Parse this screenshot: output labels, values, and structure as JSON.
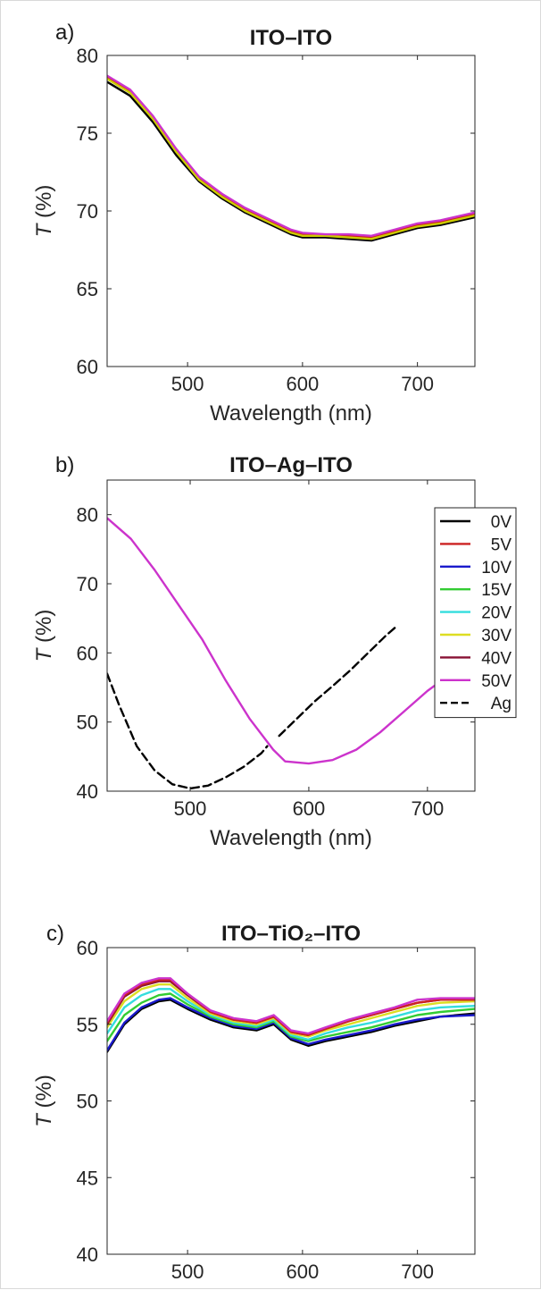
{
  "chart_data": [
    {
      "panel": "a)",
      "type": "line",
      "title": "ITO–ITO",
      "xlabel": "Wavelength (nm)",
      "ylabel_italic": "T",
      "ylabel_rest": " (%)",
      "xlim": [
        430,
        750
      ],
      "ylim": [
        60,
        80
      ],
      "xticks": [
        500,
        600,
        700
      ],
      "yticks": [
        60,
        65,
        70,
        75,
        80
      ],
      "series": [
        {
          "color": "#000000",
          "x": [
            430,
            450,
            470,
            490,
            510,
            530,
            550,
            570,
            590,
            600,
            620,
            640,
            660,
            680,
            700,
            720,
            750
          ],
          "y": [
            78.3,
            77.4,
            75.7,
            73.6,
            71.9,
            70.8,
            69.9,
            69.2,
            68.5,
            68.3,
            68.3,
            68.2,
            68.1,
            68.5,
            68.9,
            69.1,
            69.6
          ]
        },
        {
          "color": "#cc2222",
          "x": [
            430,
            450,
            470,
            490,
            510,
            530,
            550,
            570,
            590,
            600,
            620,
            640,
            660,
            680,
            700,
            720,
            750
          ],
          "y": [
            78.6,
            77.7,
            76.0,
            73.9,
            72.1,
            71.0,
            70.1,
            69.4,
            68.7,
            68.5,
            68.4,
            68.4,
            68.3,
            68.7,
            69.1,
            69.3,
            69.8
          ]
        },
        {
          "color": "#cccc00",
          "x": [
            430,
            450,
            470,
            490,
            510,
            530,
            550,
            570,
            590,
            600,
            620,
            640,
            660,
            680,
            700,
            720,
            750
          ],
          "y": [
            78.5,
            77.6,
            75.9,
            73.8,
            72.0,
            70.9,
            70.0,
            69.3,
            68.6,
            68.4,
            68.4,
            68.3,
            68.2,
            68.6,
            69.0,
            69.2,
            69.7
          ]
        },
        {
          "color": "#cc33cc",
          "x": [
            430,
            450,
            470,
            490,
            510,
            530,
            550,
            570,
            590,
            600,
            620,
            640,
            660,
            680,
            700,
            720,
            750
          ],
          "y": [
            78.7,
            77.8,
            76.1,
            74.0,
            72.2,
            71.1,
            70.2,
            69.5,
            68.8,
            68.6,
            68.5,
            68.5,
            68.4,
            68.8,
            69.2,
            69.4,
            69.9
          ]
        }
      ]
    },
    {
      "panel": "b)",
      "type": "line",
      "title": "ITO–Ag–ITO",
      "xlabel": "Wavelength (nm)",
      "ylabel_italic": "T",
      "ylabel_rest": " (%)",
      "xlim": [
        430,
        740
      ],
      "ylim": [
        40,
        85
      ],
      "xticks": [
        500,
        600,
        700
      ],
      "yticks": [
        40,
        50,
        60,
        70,
        80
      ],
      "legend_position": "right",
      "legend": [
        "0V",
        "5V",
        "10V",
        "15V",
        "20V",
        "30V",
        "40V",
        "50V",
        "Ag"
      ],
      "legend_colors": [
        "#000000",
        "#cc2222",
        "#1a1acc",
        "#33cc33",
        "#33dddd",
        "#dddd22",
        "#881133",
        "#cc33cc",
        "#000000"
      ],
      "legend_dashed": [
        false,
        false,
        false,
        false,
        false,
        false,
        false,
        false,
        true
      ],
      "series": [
        {
          "name": "50V",
          "color": "#cc33cc",
          "dashed": false,
          "x": [
            430,
            450,
            470,
            490,
            510,
            530,
            550,
            570,
            580,
            600,
            620,
            640,
            660,
            680,
            700,
            720,
            740
          ],
          "y": [
            79.5,
            76.5,
            72.0,
            67.0,
            62.0,
            56.0,
            50.5,
            46.0,
            44.3,
            44.0,
            44.5,
            46.0,
            48.5,
            51.5,
            54.5,
            57.0,
            59.5
          ]
        },
        {
          "name": "Ag",
          "color": "#000000",
          "dashed": true,
          "x": [
            430,
            440,
            455,
            470,
            485,
            500,
            515,
            530,
            545,
            560,
            565
          ],
          "y": [
            57.0,
            52.5,
            46.5,
            43.0,
            41.0,
            40.4,
            40.8,
            42.0,
            43.5,
            45.5,
            46.5
          ]
        },
        {
          "name": "Ag",
          "color": "#000000",
          "dashed": true,
          "x": [
            575,
            590,
            605,
            620,
            635,
            650,
            665,
            675
          ],
          "y": [
            48.0,
            50.5,
            53.0,
            55.2,
            57.5,
            60.0,
            62.5,
            64.0
          ]
        }
      ]
    },
    {
      "panel": "c)",
      "type": "line",
      "title": "ITO–TiO₂–ITO",
      "xlabel": "Wavelength (nm)",
      "ylabel_italic": "T",
      "ylabel_rest": " (%)",
      "xlim": [
        430,
        750
      ],
      "ylim": [
        40,
        60
      ],
      "xticks": [
        500,
        600,
        700
      ],
      "yticks": [
        40,
        45,
        50,
        55,
        60
      ],
      "series": [
        {
          "color": "#000000",
          "x": [
            430,
            445,
            460,
            475,
            485,
            500,
            520,
            540,
            560,
            575,
            590,
            605,
            620,
            640,
            660,
            680,
            700,
            720,
            750
          ],
          "y": [
            53.2,
            55.0,
            56.0,
            56.5,
            56.6,
            56.0,
            55.3,
            54.8,
            54.6,
            55.0,
            54.0,
            53.6,
            53.9,
            54.2,
            54.5,
            54.9,
            55.2,
            55.5,
            55.7
          ]
        },
        {
          "color": "#1a1acc",
          "x": [
            430,
            445,
            460,
            475,
            485,
            500,
            520,
            540,
            560,
            575,
            590,
            605,
            620,
            640,
            660,
            680,
            700,
            720,
            750
          ],
          "y": [
            53.3,
            55.1,
            56.1,
            56.6,
            56.7,
            56.1,
            55.4,
            54.9,
            54.7,
            55.1,
            54.1,
            53.7,
            54.0,
            54.3,
            54.6,
            55.0,
            55.3,
            55.5,
            55.6
          ]
        },
        {
          "color": "#33cc33",
          "x": [
            430,
            445,
            460,
            475,
            485,
            500,
            520,
            540,
            560,
            575,
            590,
            605,
            620,
            640,
            660,
            680,
            700,
            720,
            750
          ],
          "y": [
            53.9,
            55.6,
            56.4,
            56.9,
            57.0,
            56.3,
            55.5,
            55.0,
            54.8,
            55.2,
            54.2,
            53.9,
            54.2,
            54.5,
            54.8,
            55.2,
            55.6,
            55.8,
            56.0
          ]
        },
        {
          "color": "#33dddd",
          "x": [
            430,
            445,
            460,
            475,
            485,
            500,
            520,
            540,
            560,
            575,
            590,
            605,
            620,
            640,
            660,
            680,
            700,
            720,
            750
          ],
          "y": [
            54.4,
            56.1,
            56.9,
            57.3,
            57.3,
            56.5,
            55.6,
            55.1,
            54.9,
            55.3,
            54.3,
            54.0,
            54.4,
            54.8,
            55.1,
            55.5,
            55.9,
            56.1,
            56.2
          ]
        },
        {
          "color": "#dddd22",
          "x": [
            430,
            445,
            460,
            475,
            485,
            500,
            520,
            540,
            560,
            575,
            590,
            605,
            620,
            640,
            660,
            680,
            700,
            720,
            750
          ],
          "y": [
            54.8,
            56.5,
            57.3,
            57.6,
            57.6,
            56.7,
            55.7,
            55.2,
            55.0,
            55.4,
            54.4,
            54.2,
            54.6,
            55.0,
            55.4,
            55.8,
            56.2,
            56.4,
            56.5
          ]
        },
        {
          "color": "#881133",
          "x": [
            430,
            445,
            460,
            475,
            485,
            500,
            520,
            540,
            560,
            575,
            590,
            605,
            620,
            640,
            660,
            680,
            700,
            720,
            750
          ],
          "y": [
            55.0,
            56.8,
            57.5,
            57.8,
            57.8,
            56.9,
            55.8,
            55.3,
            55.1,
            55.5,
            54.5,
            54.3,
            54.7,
            55.2,
            55.6,
            56.0,
            56.4,
            56.6,
            56.6
          ]
        },
        {
          "color": "#cc2222",
          "x": [
            430,
            445,
            460,
            475,
            485,
            500,
            520,
            540,
            560,
            575,
            590,
            605,
            620,
            640,
            660,
            680,
            700,
            720,
            750
          ],
          "y": [
            55.1,
            56.9,
            57.6,
            57.9,
            57.9,
            57.0,
            55.8,
            55.3,
            55.1,
            55.5,
            54.5,
            54.3,
            54.7,
            55.2,
            55.6,
            56.0,
            56.4,
            56.6,
            56.6
          ]
        },
        {
          "color": "#cc33cc",
          "x": [
            430,
            445,
            460,
            475,
            485,
            500,
            520,
            540,
            560,
            575,
            590,
            605,
            620,
            640,
            660,
            680,
            700,
            720,
            750
          ],
          "y": [
            55.2,
            57.0,
            57.7,
            58.0,
            58.0,
            57.0,
            55.9,
            55.4,
            55.2,
            55.6,
            54.6,
            54.4,
            54.8,
            55.3,
            55.7,
            56.1,
            56.6,
            56.7,
            56.7
          ]
        }
      ]
    }
  ]
}
